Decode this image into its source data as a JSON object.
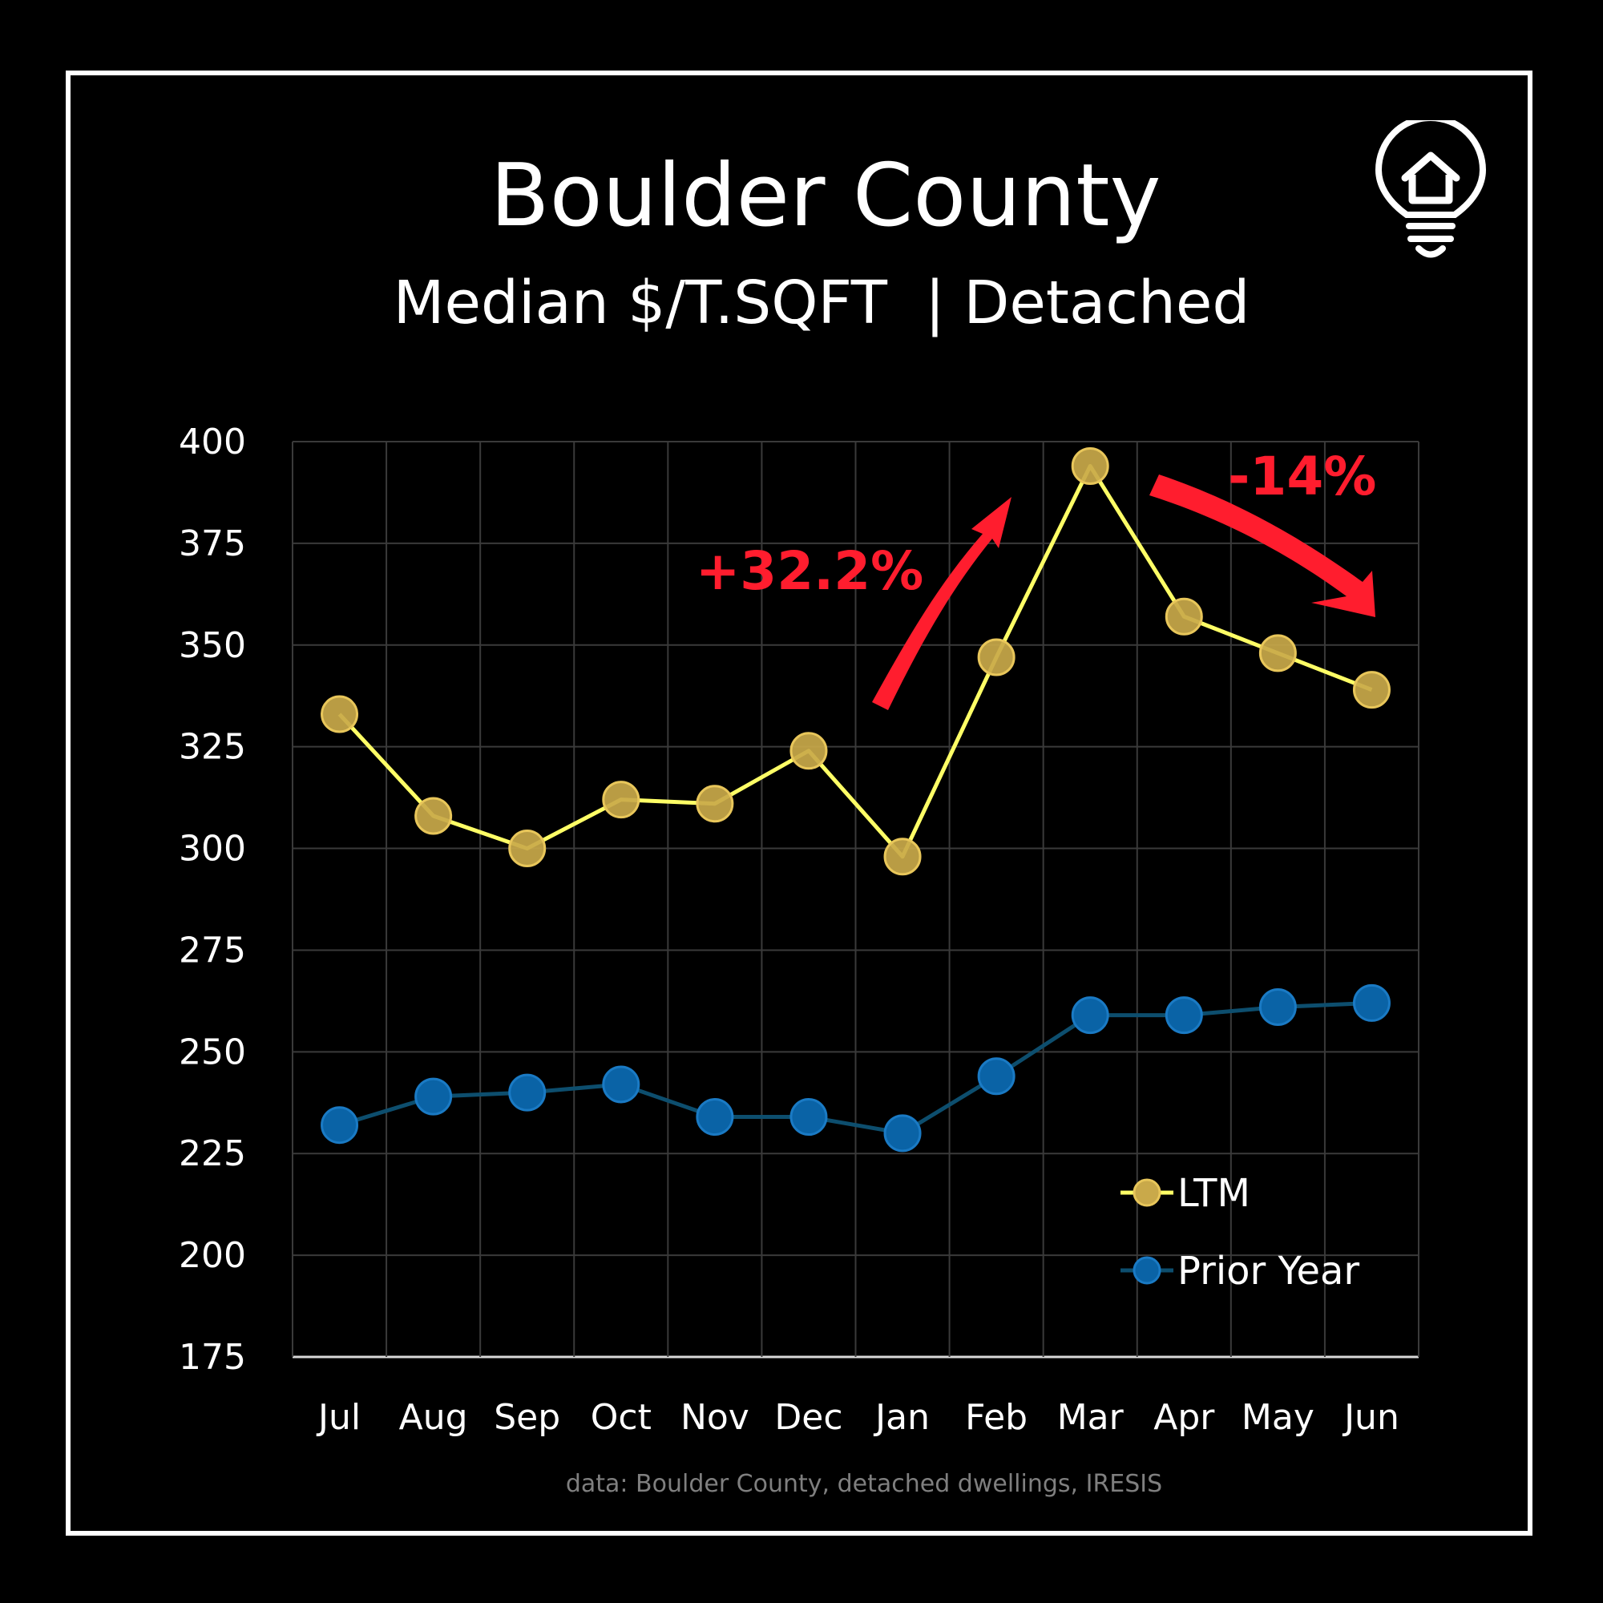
{
  "page": {
    "title": "Boulder County",
    "subtitle": "Median $/T.SQFT  | Detached",
    "source": "data: Boulder County, detached dwellings, IRESIS",
    "logo_icon": "lightbulb-house-icon"
  },
  "chart_data": {
    "type": "line",
    "title": "Boulder County",
    "subtitle": "Median $/T.SQFT  | Detached",
    "categories": [
      "Jul",
      "Aug",
      "Sep",
      "Oct",
      "Nov",
      "Dec",
      "Jan",
      "Feb",
      "Mar",
      "Apr",
      "May",
      "Jun"
    ],
    "ylim": [
      175,
      400
    ],
    "yticks": [
      175,
      200,
      225,
      250,
      275,
      300,
      325,
      350,
      375,
      400
    ],
    "grid": true,
    "legend_position": "bottom-right",
    "series": [
      {
        "name": "LTM",
        "values": [
          333,
          308,
          300,
          312,
          311,
          324,
          298,
          347,
          394,
          357,
          348,
          339
        ],
        "line_color": "#ffff66",
        "marker_color": "#c9a94a"
      },
      {
        "name": "Prior Year",
        "values": [
          232,
          239,
          240,
          242,
          234,
          234,
          230,
          244,
          259,
          259,
          261,
          262
        ],
        "line_color": "#0d4e6e",
        "marker_color": "#0a63a6"
      }
    ],
    "annotations": [
      {
        "text": "+32.2%",
        "color": "#ff1d2e"
      },
      {
        "text": "-14%",
        "color": "#ff1d2e"
      }
    ]
  }
}
